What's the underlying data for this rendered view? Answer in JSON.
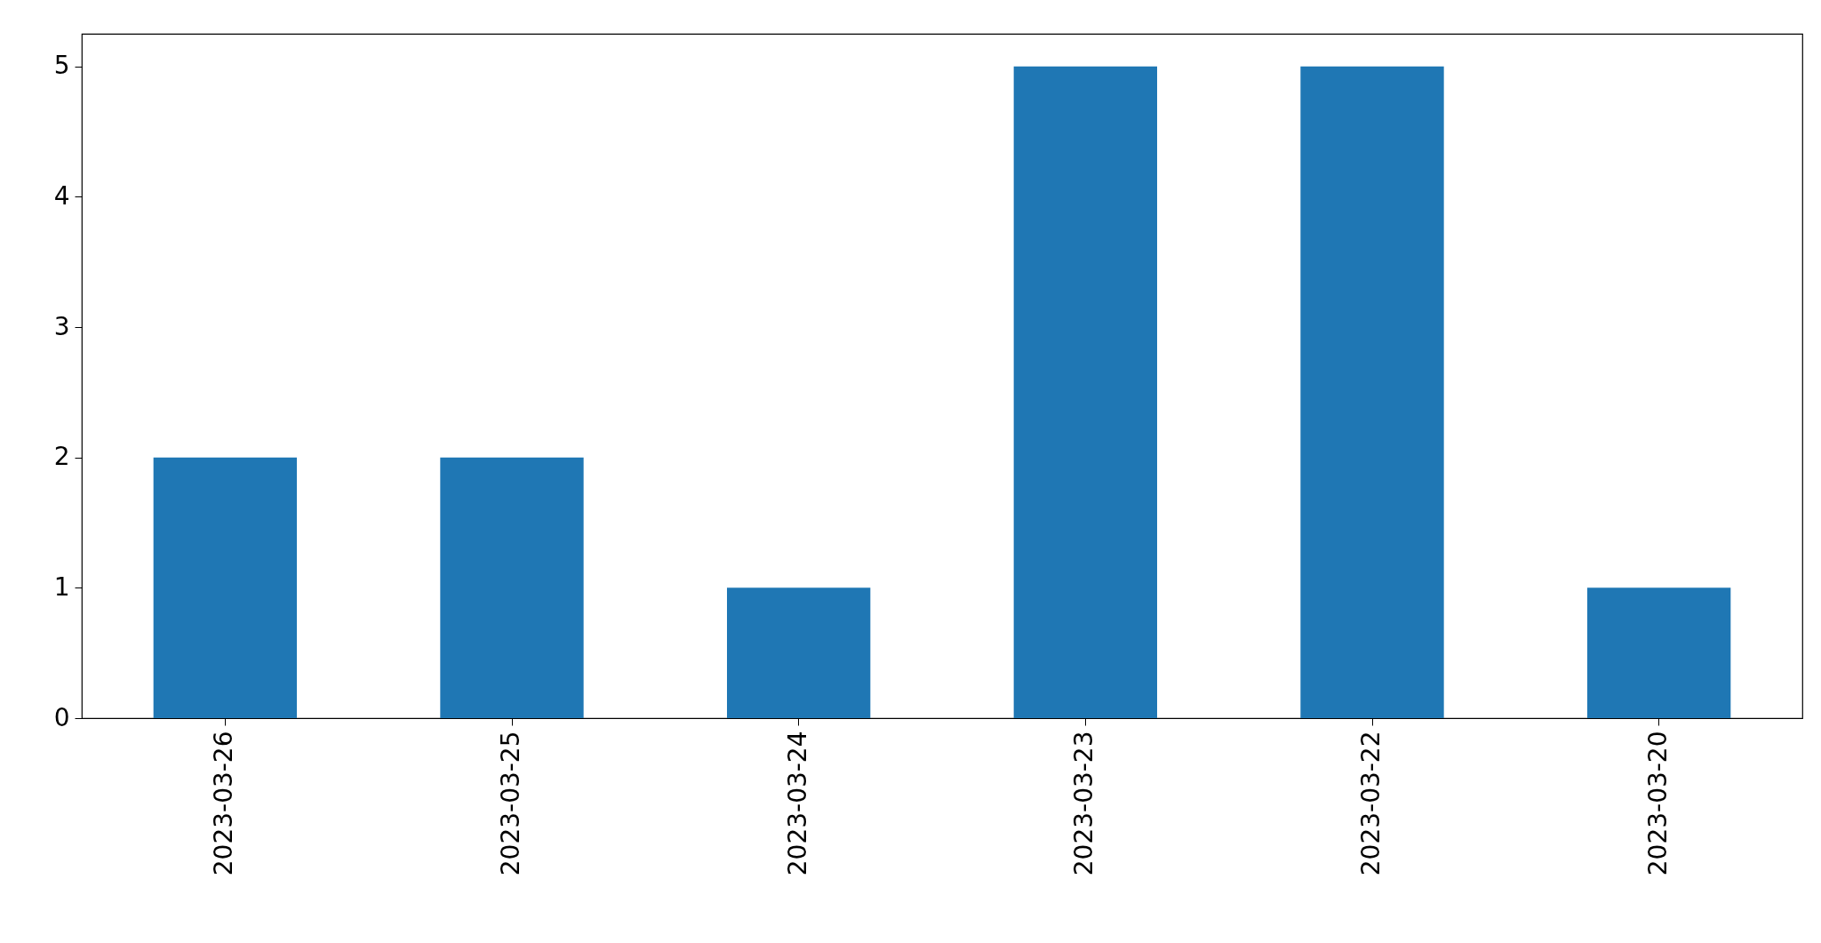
{
  "chart_data": {
    "type": "bar",
    "categories": [
      "2023-03-26",
      "2023-03-25",
      "2023-03-24",
      "2023-03-23",
      "2023-03-22",
      "2023-03-20"
    ],
    "values": [
      2,
      2,
      1,
      5,
      5,
      1
    ],
    "color": "#1f77b4",
    "ylim": [
      0,
      5.25
    ],
    "yticks": [
      0,
      1,
      2,
      3,
      4,
      5
    ],
    "grid": false
  }
}
